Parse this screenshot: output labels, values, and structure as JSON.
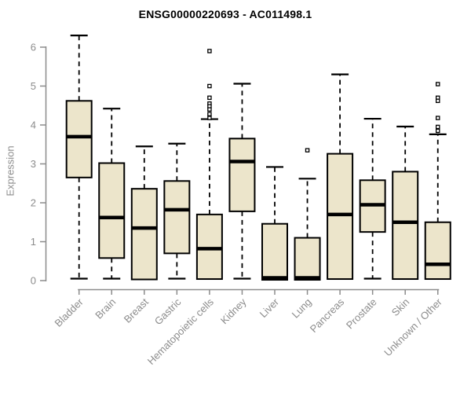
{
  "header": {
    "title": "ENSG00000220693 - AC011498.1"
  },
  "chart_data": {
    "type": "boxplot",
    "title": "ENSG00000220693 - AC011498.1",
    "xlabel": "",
    "ylabel": "Expression",
    "ylim": [
      0,
      6
    ],
    "yticks": [
      0,
      1,
      2,
      3,
      4,
      5,
      6
    ],
    "grid": false,
    "legend": "none",
    "colors": {
      "box_fill": "#ece5cb",
      "box_stroke": "#000000",
      "median": "#000000",
      "whisker": "#000000",
      "axis": "#8c8c8c",
      "tick_label": "#8c8c8c",
      "title": "#000000",
      "background": "#ffffff"
    },
    "categories": [
      "Bladder",
      "Brain",
      "Breast",
      "Gastric",
      "Hematopoietic cells",
      "Kidney",
      "Liver",
      "Lung",
      "Pancreas",
      "Prostate",
      "Skin",
      "Unknown / Other"
    ],
    "series": [
      {
        "name": "Bladder",
        "whisker_low": 0.05,
        "q1": 2.65,
        "median": 3.7,
        "q3": 4.62,
        "whisker_high": 6.3,
        "outliers": []
      },
      {
        "name": "Brain",
        "whisker_low": 0.05,
        "q1": 0.58,
        "median": 1.62,
        "q3": 3.02,
        "whisker_high": 4.42,
        "outliers": []
      },
      {
        "name": "Breast",
        "whisker_low": 0.03,
        "q1": 0.03,
        "median": 1.35,
        "q3": 2.36,
        "whisker_high": 3.45,
        "outliers": []
      },
      {
        "name": "Gastric",
        "whisker_low": 0.05,
        "q1": 0.7,
        "median": 1.82,
        "q3": 2.56,
        "whisker_high": 3.52,
        "outliers": []
      },
      {
        "name": "Hematopoietic cells",
        "whisker_low": 0.04,
        "q1": 0.04,
        "median": 0.82,
        "q3": 1.7,
        "whisker_high": 4.15,
        "outliers": [
          5.9,
          5.0,
          4.7,
          4.55,
          4.48,
          4.4,
          4.28,
          4.18
        ]
      },
      {
        "name": "Kidney",
        "whisker_low": 0.05,
        "q1": 1.78,
        "median": 3.06,
        "q3": 3.65,
        "whisker_high": 5.06,
        "outliers": []
      },
      {
        "name": "Liver",
        "whisker_low": 0.02,
        "q1": 0.02,
        "median": 0.07,
        "q3": 1.46,
        "whisker_high": 2.92,
        "outliers": []
      },
      {
        "name": "Lung",
        "whisker_low": 0.02,
        "q1": 0.02,
        "median": 0.07,
        "q3": 1.1,
        "whisker_high": 2.62,
        "outliers": [
          3.35
        ]
      },
      {
        "name": "Pancreas",
        "whisker_low": 0.04,
        "q1": 0.04,
        "median": 1.7,
        "q3": 3.26,
        "whisker_high": 5.3,
        "outliers": []
      },
      {
        "name": "Prostate",
        "whisker_low": 0.05,
        "q1": 1.25,
        "median": 1.95,
        "q3": 2.58,
        "whisker_high": 4.16,
        "outliers": []
      },
      {
        "name": "Skin",
        "whisker_low": 0.04,
        "q1": 0.04,
        "median": 1.5,
        "q3": 2.8,
        "whisker_high": 3.96,
        "outliers": []
      },
      {
        "name": "Unknown / Other",
        "whisker_low": 0.04,
        "q1": 0.04,
        "median": 0.42,
        "q3": 1.5,
        "whisker_high": 3.76,
        "outliers": [
          5.05,
          4.7,
          4.62,
          4.18,
          3.95,
          3.85
        ]
      }
    ]
  }
}
